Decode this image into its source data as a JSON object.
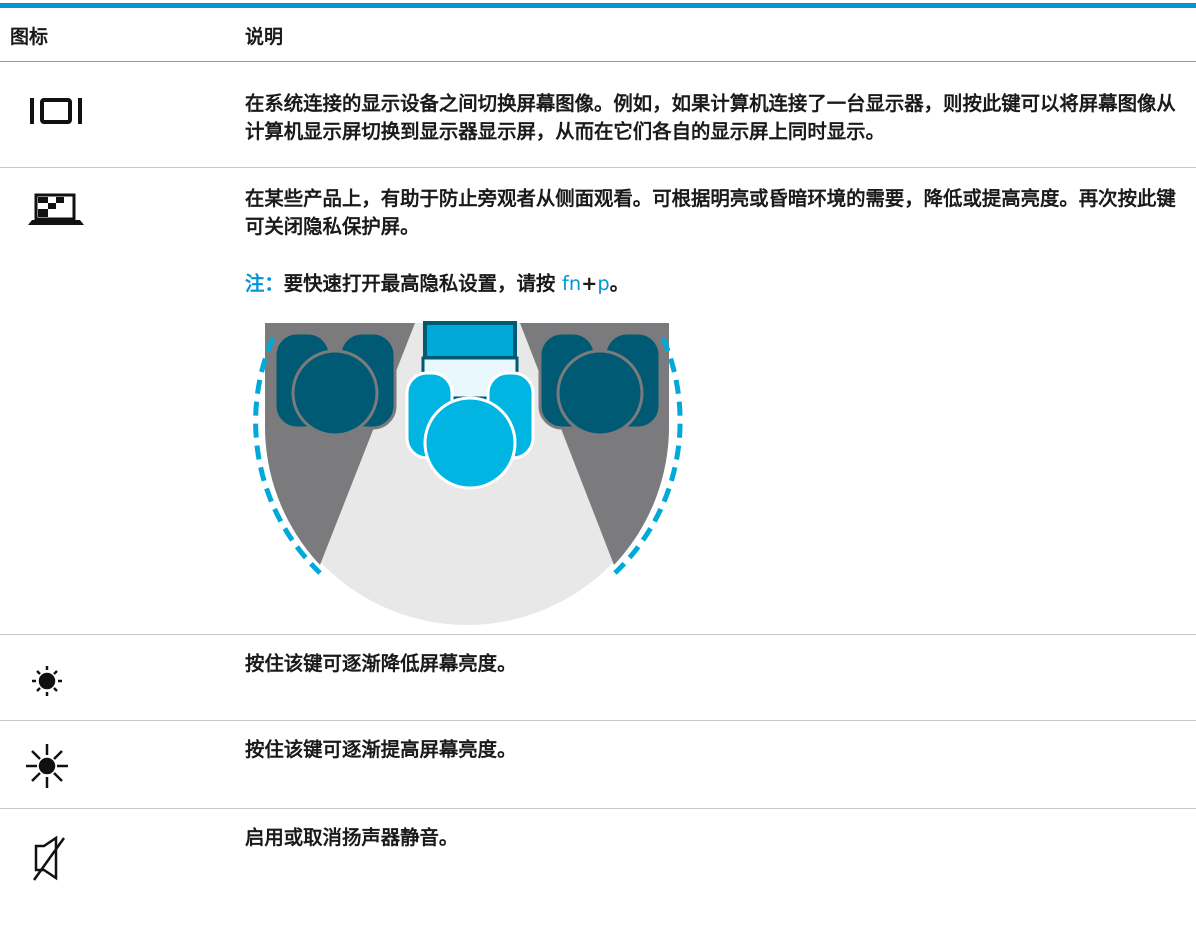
{
  "header": {
    "icon": "图标",
    "description": "说明"
  },
  "rows": [
    {
      "text": "在系统连接的显示设备之间切换屏幕图像。例如，如果计算机连接了一台显示器，则按此键可以将屏幕图像从计算机显示屏切换到显示器显示屏，从而在它们各自的显示屏上同时显示。"
    },
    {
      "text": "在某些产品上，有助于防止旁观者从侧面观看。可根据明亮或昏暗环境的需要，降低或提高亮度。再次按此键可关闭隐私保护屏。",
      "note": {
        "label": "注：",
        "text": "要快速打开最高隐私设置，请按 ",
        "key1": "fn",
        "plus": "+",
        "key2": "p",
        "end": "。"
      }
    },
    {
      "text": "按住该键可逐渐降低屏幕亮度。"
    },
    {
      "text": "按住该键可逐渐提高屏幕亮度。"
    },
    {
      "text": "启用或取消扬声器静音。"
    }
  ]
}
